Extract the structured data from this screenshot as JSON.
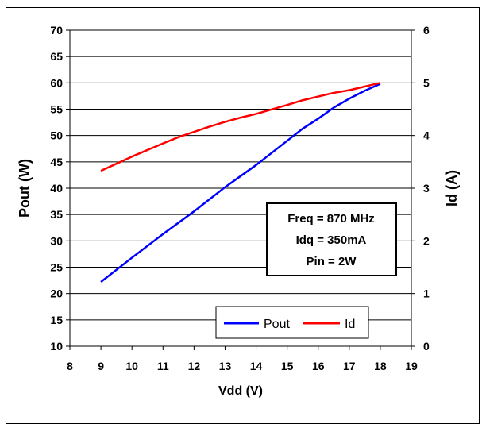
{
  "chart_data": {
    "type": "line",
    "xlabel": "Vdd (V)",
    "ylabel": "Pout (W)",
    "y2label": "Id (A)",
    "xlim": [
      8,
      19
    ],
    "ylim": [
      10,
      70
    ],
    "y2lim": [
      0,
      6
    ],
    "x_ticks": [
      8,
      9,
      10,
      11,
      12,
      13,
      14,
      15,
      16,
      17,
      18,
      19
    ],
    "y_ticks": [
      10,
      15,
      20,
      25,
      30,
      35,
      40,
      45,
      50,
      55,
      60,
      65,
      70
    ],
    "y2_ticks": [
      0,
      1,
      2,
      3,
      4,
      5,
      6
    ],
    "grid": "horizontal",
    "series": [
      {
        "name": "Pout",
        "axis": "left",
        "color": "#0000ff",
        "x": [
          9,
          10,
          11,
          12,
          13,
          14,
          15,
          15.5,
          16,
          16.5,
          17,
          17.5,
          18
        ],
        "values": [
          22.2,
          26.8,
          31.3,
          35.6,
          40.2,
          44.4,
          49.0,
          51.3,
          53.2,
          55.3,
          57.0,
          58.5,
          59.8
        ]
      },
      {
        "name": "Id",
        "axis": "right",
        "color": "#ff0000",
        "x": [
          9,
          10,
          11,
          11.5,
          12,
          12.5,
          13,
          13.5,
          14,
          15,
          15.5,
          16,
          16.5,
          17,
          18
        ],
        "values": [
          3.33,
          3.6,
          3.85,
          3.97,
          4.07,
          4.17,
          4.26,
          4.34,
          4.41,
          4.58,
          4.67,
          4.74,
          4.81,
          4.86,
          5.0
        ]
      }
    ],
    "legend": {
      "placement": "bottom-right",
      "entries": [
        "Pout",
        "Id"
      ]
    },
    "annotation": [
      "Freq = 870 MHz",
      "Idq = 350mA",
      "Pin = 2W"
    ]
  }
}
